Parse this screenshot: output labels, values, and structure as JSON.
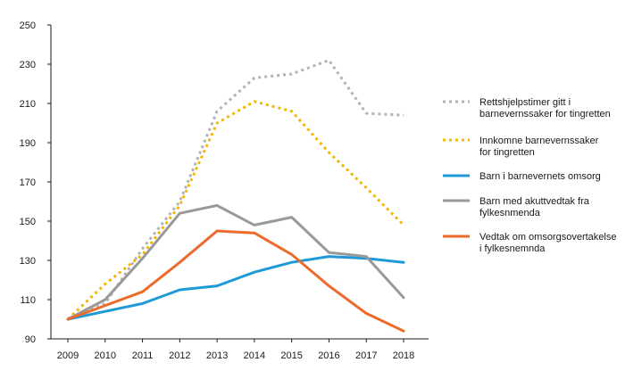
{
  "chart_data": {
    "type": "line",
    "title": "",
    "xlabel": "",
    "ylabel": "",
    "categories": [
      "2009",
      "2010",
      "2011",
      "2012",
      "2013",
      "2014",
      "2015",
      "2016",
      "2017",
      "2018"
    ],
    "ylim": [
      90,
      250
    ],
    "yticks": [
      90,
      110,
      130,
      150,
      170,
      190,
      210,
      230,
      250
    ],
    "grid": false,
    "legend_position": "right",
    "series": [
      {
        "name": "Rettshjelpstimer gitt i barnevernssaker for tingretten",
        "legend_lines": [
          "Rettshjelpstimer gitt i",
          "barnevernssaker for tingretten"
        ],
        "color": "#b3b3b3",
        "style": "dotted",
        "values": [
          100,
          108,
          136,
          160,
          206,
          223,
          225,
          232,
          205,
          204
        ]
      },
      {
        "name": "Innkomne barnevernssaker for tingretten",
        "legend_lines": [
          "Innkomne barnevernssaker",
          "for tingretten"
        ],
        "color": "#f2b705",
        "style": "dotted",
        "values": [
          100,
          118,
          133,
          158,
          200,
          211,
          206,
          185,
          167,
          148
        ]
      },
      {
        "name": "Barn i barnevernets omsorg",
        "legend_lines": [
          "Barn i barnevernets omsorg"
        ],
        "color": "#1e9bd7",
        "style": "solid",
        "values": [
          100,
          104,
          108,
          115,
          117,
          124,
          129,
          132,
          131,
          129
        ]
      },
      {
        "name": "Barn med akuttvedtak fra fylkesnmenda",
        "legend_lines": [
          "Barn med akuttvedtak fra",
          "fylkesnmenda"
        ],
        "color": "#999999",
        "style": "solid",
        "values": [
          100,
          110,
          131,
          154,
          158,
          148,
          152,
          134,
          132,
          111
        ]
      },
      {
        "name": "Vedtak om omsorgsovertakelse i fylkesnemnda",
        "legend_lines": [
          "Vedtak om omsorgsovertakelse",
          "i fylkesnemnda"
        ],
        "color": "#ec6a2c",
        "style": "solid",
        "values": [
          100,
          107,
          114,
          129,
          145,
          144,
          133,
          117,
          103,
          94
        ]
      }
    ]
  }
}
